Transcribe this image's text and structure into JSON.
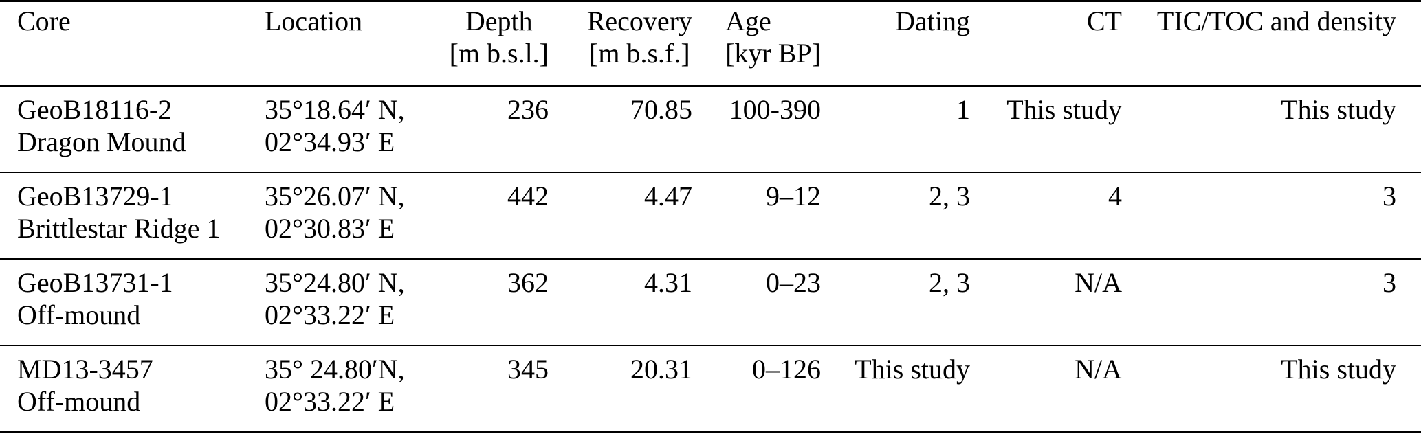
{
  "table": {
    "columns": [
      {
        "label": "Core",
        "unit": ""
      },
      {
        "label": "Location",
        "unit": ""
      },
      {
        "label": "Depth",
        "unit": "[m b.s.l.]"
      },
      {
        "label": "Recovery",
        "unit": "[m b.s.f.]"
      },
      {
        "label": "Age",
        "unit": "[kyr BP]"
      },
      {
        "label": "Dating",
        "unit": ""
      },
      {
        "label": "CT",
        "unit": ""
      },
      {
        "label": "TIC/TOC and density",
        "unit": ""
      }
    ],
    "rows": [
      {
        "core": [
          "GeoB18116-2",
          "Dragon Mound"
        ],
        "location": [
          "35°18.64′ N,",
          "02°34.93′ E"
        ],
        "depth": "236",
        "recovery": "70.85",
        "age": "100-390",
        "dating": "1",
        "ct": "This study",
        "tic_toc_density": "This study"
      },
      {
        "core": [
          "GeoB13729-1",
          "Brittlestar Ridge 1"
        ],
        "location": [
          "35°26.07′ N,",
          "02°30.83′ E"
        ],
        "depth": "442",
        "recovery": "4.47",
        "age": "9–12",
        "dating": "2, 3",
        "ct": "4",
        "tic_toc_density": "3"
      },
      {
        "core": [
          "GeoB13731-1",
          "Off-mound"
        ],
        "location": [
          "35°24.80′ N,",
          "02°33.22′ E"
        ],
        "depth": "362",
        "recovery": "4.31",
        "age": "0–23",
        "dating": "2, 3",
        "ct": "N/A",
        "tic_toc_density": "3"
      },
      {
        "core": [
          "MD13-3457",
          "Off-mound"
        ],
        "location": [
          "35° 24.80′N,",
          "02°33.22′ E"
        ],
        "depth": "345",
        "recovery": "20.31",
        "age": "0–126",
        "dating": "This study",
        "ct": "N/A",
        "tic_toc_density": "This study"
      }
    ]
  },
  "colors": {
    "text": "#000000",
    "rules": "#000000",
    "background": "#ffffff"
  }
}
